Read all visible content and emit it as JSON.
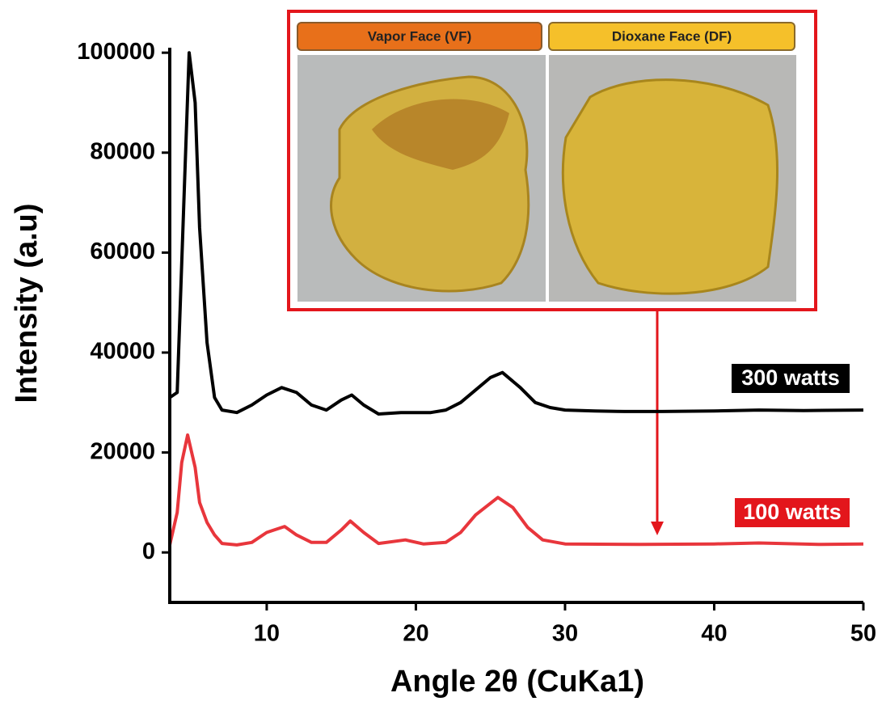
{
  "chart_data": {
    "type": "line",
    "x_label": "Angle 2θ (CuKa1)",
    "y_label": "Intensity (a.u)",
    "annotations": [
      "Vapor Face (VF)",
      "Dioxane Face (DF)"
    ],
    "xlim": [
      3.5,
      50
    ],
    "ylim": [
      -10000,
      101000
    ],
    "xticks": [
      10,
      20,
      30,
      40,
      50
    ],
    "yticks": [
      0,
      20000,
      40000,
      60000,
      80000,
      100000
    ],
    "series": [
      {
        "name": "300 watts",
        "color": "#000000",
        "x": [
          3.5,
          4,
          4.5,
          4.8,
          5.2,
          5.5,
          6,
          6.5,
          7,
          8,
          9,
          10,
          11,
          12,
          13,
          14,
          15,
          15.7,
          16.5,
          17.5,
          19,
          20,
          21,
          22,
          23,
          24,
          25,
          25.8,
          27,
          28,
          29,
          30,
          32,
          34,
          35.5,
          36.5,
          40,
          43,
          46,
          50
        ],
        "values": [
          31000,
          32000,
          75000,
          100000,
          90000,
          65000,
          42000,
          31000,
          28500,
          28000,
          29500,
          31500,
          33000,
          32000,
          29500,
          28500,
          30500,
          31500,
          29500,
          27700,
          28000,
          28000,
          28000,
          28500,
          30000,
          32500,
          35000,
          36000,
          33000,
          30000,
          29000,
          28500,
          28300,
          28200,
          28200,
          28200,
          28300,
          28500,
          28400,
          28500
        ]
      },
      {
        "name": "100 watts",
        "color": "#e8363c",
        "x": [
          3.5,
          4,
          4.3,
          4.7,
          5.2,
          5.5,
          6,
          6.5,
          7,
          8,
          9,
          10,
          10.5,
          11.2,
          12,
          13,
          14,
          15,
          15.6,
          16.5,
          17.5,
          19.3,
          20.5,
          22,
          23,
          24,
          25.5,
          26.5,
          27.5,
          28.5,
          30,
          35,
          40,
          43,
          47,
          50
        ],
        "values": [
          1500,
          8000,
          18000,
          23500,
          17000,
          10000,
          6000,
          3500,
          1800,
          1500,
          2000,
          4000,
          4500,
          5200,
          3500,
          2000,
          2000,
          4500,
          6300,
          4000,
          1800,
          2500,
          1700,
          2000,
          4000,
          7500,
          11000,
          9000,
          5000,
          2500,
          1700,
          1600,
          1700,
          1900,
          1600,
          1700
        ]
      }
    ]
  }
}
